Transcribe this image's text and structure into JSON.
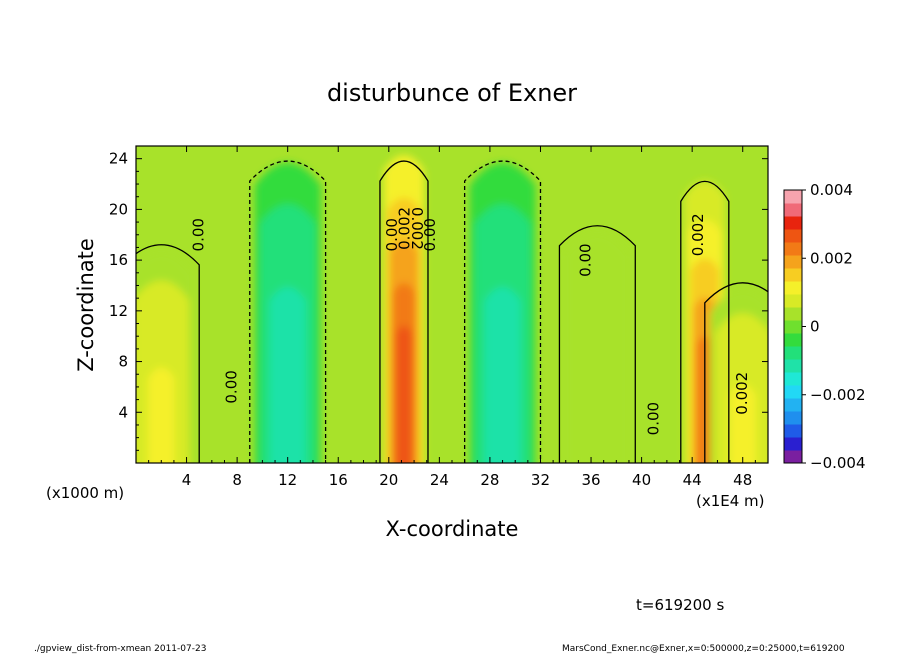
{
  "chart_data": {
    "type": "heatmap",
    "title": "disturbunce of Exner",
    "xlabel": "X-coordinate",
    "ylabel": "Z-coordinate",
    "x_unit": "(x1E4 m)",
    "y_unit": "(x1000 m)",
    "xlim": [
      0,
      50
    ],
    "ylim": [
      0,
      25
    ],
    "x_ticks": [
      4,
      8,
      12,
      16,
      20,
      24,
      28,
      32,
      36,
      40,
      44,
      48
    ],
    "y_ticks": [
      4,
      8,
      12,
      16,
      20,
      24
    ],
    "colorbar": {
      "min": -0.004,
      "max": 0.004,
      "tick_labels": [
        "0.004",
        "0.002",
        "0",
        "−0.002",
        "−0.004"
      ],
      "tick_values": [
        0.004,
        0.002,
        0,
        -0.002,
        -0.004
      ],
      "colors": [
        "#7a1fa0",
        "#2a1fd0",
        "#1f5be8",
        "#1f8fee",
        "#22b2f2",
        "#22d8f5",
        "#1fe8d6",
        "#1fe2a8",
        "#22e07a",
        "#33dc3d",
        "#6fe02e",
        "#a8e22a",
        "#d8ea26",
        "#f5f02a",
        "#f7cd22",
        "#f5a31c",
        "#f27a16",
        "#ee5512",
        "#e8240e",
        "#f06a78",
        "#f7a3ae"
      ]
    },
    "features": [
      {
        "x": 2,
        "z_top": 18,
        "value": 0.0012
      },
      {
        "x": 12,
        "z_top": 25,
        "value": -0.0014
      },
      {
        "x": 21.2,
        "z_top": 25,
        "value": 0.003
      },
      {
        "x": 29,
        "z_top": 25,
        "value": -0.0013
      },
      {
        "x": 36.5,
        "z_top": 19.5,
        "value": 0.0006
      },
      {
        "x": 45,
        "z_top": 23,
        "value": 0.0025
      },
      {
        "x": 48,
        "z_top": 15,
        "value": 0.0012
      }
    ],
    "contour_labels": [
      {
        "text": "0.00",
        "x": 5.0,
        "z": 18.0,
        "angle": -90
      },
      {
        "text": "0.00",
        "x": 7.6,
        "z": 6.0,
        "angle": -90
      },
      {
        "text": "0.00",
        "x": 20.3,
        "z": 18.0,
        "angle": -90
      },
      {
        "text": "0.002",
        "x": 21.3,
        "z": 18.5,
        "angle": -90
      },
      {
        "text": "0.002",
        "x": 22.2,
        "z": 18.5,
        "angle": 90
      },
      {
        "text": "0.00",
        "x": 23.3,
        "z": 18.0,
        "angle": -90
      },
      {
        "text": "0.00",
        "x": 35.6,
        "z": 16.0,
        "angle": -90
      },
      {
        "text": "0.00",
        "x": 41.0,
        "z": 3.5,
        "angle": -90
      },
      {
        "text": "0.002",
        "x": 44.5,
        "z": 18.0,
        "angle": -90
      },
      {
        "text": "0.002",
        "x": 48.0,
        "z": 5.5,
        "angle": -90
      }
    ],
    "grid": false,
    "legend": "right"
  },
  "annotations": {
    "time": "t=619200 s",
    "footer_left": "./gpview_dist-from-xmean   2011-07-23",
    "footer_right": "MarsCond_Exner.nc@Exner,x=0:500000,z=0:25000,t=619200"
  }
}
